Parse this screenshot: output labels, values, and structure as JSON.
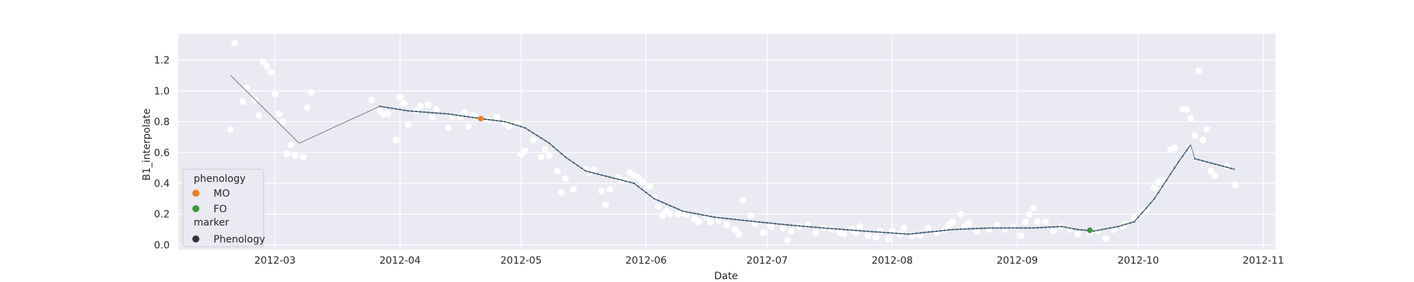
{
  "chart_data": {
    "type": "scatter",
    "xlabel": "Date",
    "ylabel": "B1_interpolate",
    "xlim": [
      "2012-02-06",
      "2012-11-04"
    ],
    "ylim": [
      -0.03,
      1.37
    ],
    "grid": true,
    "background": "#eaeaf2",
    "x_ticks": [
      {
        "date": "2012-03-01",
        "label": "2012-03"
      },
      {
        "date": "2012-04-01",
        "label": "2012-04"
      },
      {
        "date": "2012-05-01",
        "label": "2012-05"
      },
      {
        "date": "2012-06-01",
        "label": "2012-06"
      },
      {
        "date": "2012-07-01",
        "label": "2012-07"
      },
      {
        "date": "2012-08-01",
        "label": "2012-08"
      },
      {
        "date": "2012-09-01",
        "label": "2012-09"
      },
      {
        "date": "2012-10-01",
        "label": "2012-10"
      },
      {
        "date": "2012-11-01",
        "label": "2012-11"
      }
    ],
    "y_ticks": [
      {
        "value": 0.0,
        "label": "0.0"
      },
      {
        "value": 0.2,
        "label": "0.2"
      },
      {
        "value": 0.4,
        "label": "0.4"
      },
      {
        "value": 0.6,
        "label": "0.6"
      },
      {
        "value": 0.8,
        "label": "0.8"
      },
      {
        "value": 1.0,
        "label": "1.0"
      },
      {
        "value": 1.2,
        "label": "1.2"
      }
    ],
    "raw_points": {
      "color": "#ffffff",
      "points": [
        [
          "2012-02-19",
          0.75
        ],
        [
          "2012-02-20",
          1.31
        ],
        [
          "2012-02-22",
          0.93
        ],
        [
          "2012-02-23",
          1.02
        ],
        [
          "2012-02-25",
          0.94
        ],
        [
          "2012-02-26",
          0.84
        ],
        [
          "2012-02-27",
          1.19
        ],
        [
          "2012-02-28",
          1.16
        ],
        [
          "2012-02-29",
          1.12
        ],
        [
          "2012-03-01",
          0.98
        ],
        [
          "2012-03-02",
          0.85
        ],
        [
          "2012-03-03",
          0.8
        ],
        [
          "2012-03-04",
          0.59
        ],
        [
          "2012-03-05",
          0.65
        ],
        [
          "2012-03-06",
          0.58
        ],
        [
          "2012-03-08",
          0.57
        ],
        [
          "2012-03-09",
          0.89
        ],
        [
          "2012-03-10",
          0.99
        ],
        [
          "2012-03-25",
          0.94
        ],
        [
          "2012-03-27",
          0.87
        ],
        [
          "2012-03-28",
          0.85
        ],
        [
          "2012-03-29",
          0.85
        ],
        [
          "2012-03-31",
          0.68
        ],
        [
          "2012-04-01",
          0.96
        ],
        [
          "2012-04-02",
          0.92
        ],
        [
          "2012-04-03",
          0.78
        ],
        [
          "2012-04-05",
          0.87
        ],
        [
          "2012-04-06",
          0.9
        ],
        [
          "2012-04-08",
          0.91
        ],
        [
          "2012-04-09",
          0.83
        ],
        [
          "2012-04-10",
          0.88
        ],
        [
          "2012-04-13",
          0.76
        ],
        [
          "2012-04-14",
          0.83
        ],
        [
          "2012-04-16",
          0.83
        ],
        [
          "2012-04-17",
          0.86
        ],
        [
          "2012-04-18",
          0.77
        ],
        [
          "2012-04-19",
          0.84
        ],
        [
          "2012-04-20",
          0.83
        ],
        [
          "2012-04-23",
          0.81
        ],
        [
          "2012-04-25",
          0.83
        ],
        [
          "2012-04-27",
          0.79
        ],
        [
          "2012-04-28",
          0.77
        ],
        [
          "2012-04-30",
          0.79
        ],
        [
          "2012-05-01",
          0.59
        ],
        [
          "2012-05-02",
          0.61
        ],
        [
          "2012-05-04",
          0.68
        ],
        [
          "2012-05-06",
          0.57
        ],
        [
          "2012-05-07",
          0.62
        ],
        [
          "2012-05-08",
          0.58
        ],
        [
          "2012-05-10",
          0.48
        ],
        [
          "2012-05-11",
          0.34
        ],
        [
          "2012-05-12",
          0.43
        ],
        [
          "2012-05-14",
          0.36
        ],
        [
          "2012-05-17",
          0.49
        ],
        [
          "2012-05-18",
          0.47
        ],
        [
          "2012-05-19",
          0.49
        ],
        [
          "2012-05-21",
          0.35
        ],
        [
          "2012-05-22",
          0.26
        ],
        [
          "2012-05-23",
          0.36
        ],
        [
          "2012-05-25",
          0.44
        ],
        [
          "2012-05-26",
          0.42
        ],
        [
          "2012-05-27",
          0.42
        ],
        [
          "2012-05-28",
          0.47
        ],
        [
          "2012-05-29",
          0.45
        ],
        [
          "2012-05-30",
          0.44
        ],
        [
          "2012-05-31",
          0.41
        ],
        [
          "2012-06-02",
          0.38
        ],
        [
          "2012-06-03",
          0.31
        ],
        [
          "2012-06-04",
          0.25
        ],
        [
          "2012-06-05",
          0.19
        ],
        [
          "2012-06-06",
          0.22
        ],
        [
          "2012-06-07",
          0.2
        ],
        [
          "2012-06-09",
          0.2
        ],
        [
          "2012-06-10",
          0.21
        ],
        [
          "2012-06-11",
          0.2
        ],
        [
          "2012-06-13",
          0.17
        ],
        [
          "2012-06-14",
          0.15
        ],
        [
          "2012-06-16",
          0.18
        ],
        [
          "2012-06-17",
          0.15
        ],
        [
          "2012-06-19",
          0.16
        ],
        [
          "2012-06-21",
          0.13
        ],
        [
          "2012-06-23",
          0.1
        ],
        [
          "2012-06-24",
          0.07
        ],
        [
          "2012-06-25",
          0.29
        ],
        [
          "2012-06-27",
          0.19
        ],
        [
          "2012-06-28",
          0.14
        ],
        [
          "2012-06-30",
          0.08
        ],
        [
          "2012-07-02",
          0.12
        ],
        [
          "2012-07-05",
          0.11
        ],
        [
          "2012-07-06",
          0.03
        ],
        [
          "2012-07-07",
          0.09
        ],
        [
          "2012-07-09",
          0.12
        ],
        [
          "2012-07-11",
          0.13
        ],
        [
          "2012-07-13",
          0.08
        ],
        [
          "2012-07-15",
          0.11
        ],
        [
          "2012-07-17",
          0.1
        ],
        [
          "2012-07-19",
          0.08
        ],
        [
          "2012-07-20",
          0.07
        ],
        [
          "2012-07-22",
          0.1
        ],
        [
          "2012-07-23",
          0.08
        ],
        [
          "2012-07-24",
          0.12
        ],
        [
          "2012-07-26",
          0.06
        ],
        [
          "2012-07-28",
          0.05
        ],
        [
          "2012-07-29",
          0.09
        ],
        [
          "2012-07-31",
          0.04
        ],
        [
          "2012-08-01",
          0.09
        ],
        [
          "2012-08-03",
          0.07
        ],
        [
          "2012-08-04",
          0.11
        ],
        [
          "2012-08-06",
          0.06
        ],
        [
          "2012-08-08",
          0.06
        ],
        [
          "2012-08-10",
          0.11
        ],
        [
          "2012-08-12",
          0.08
        ],
        [
          "2012-08-14",
          0.1
        ],
        [
          "2012-08-15",
          0.13
        ],
        [
          "2012-08-16",
          0.15
        ],
        [
          "2012-08-18",
          0.2
        ],
        [
          "2012-08-19",
          0.12
        ],
        [
          "2012-08-20",
          0.14
        ],
        [
          "2012-08-22",
          0.09
        ],
        [
          "2012-08-25",
          0.1
        ],
        [
          "2012-08-27",
          0.13
        ],
        [
          "2012-08-29",
          0.1
        ],
        [
          "2012-08-31",
          0.12
        ],
        [
          "2012-09-02",
          0.06
        ],
        [
          "2012-09-03",
          0.15
        ],
        [
          "2012-09-04",
          0.2
        ],
        [
          "2012-09-05",
          0.24
        ],
        [
          "2012-09-06",
          0.15
        ],
        [
          "2012-09-08",
          0.15
        ],
        [
          "2012-09-10",
          0.09
        ],
        [
          "2012-09-12",
          0.12
        ],
        [
          "2012-09-14",
          0.1
        ],
        [
          "2012-09-16",
          0.07
        ],
        [
          "2012-09-19",
          0.08
        ],
        [
          "2012-09-21",
          0.09
        ],
        [
          "2012-09-23",
          0.04
        ],
        [
          "2012-09-25",
          0.1
        ],
        [
          "2012-09-27",
          0.12
        ],
        [
          "2012-09-28",
          0.14
        ],
        [
          "2012-09-30",
          0.17
        ],
        [
          "2012-10-01",
          0.19
        ],
        [
          "2012-10-02",
          0.21
        ],
        [
          "2012-10-03",
          0.23
        ],
        [
          "2012-10-05",
          0.37
        ],
        [
          "2012-10-06",
          0.41
        ],
        [
          "2012-10-07",
          0.42
        ],
        [
          "2012-10-09",
          0.62
        ],
        [
          "2012-10-10",
          0.63
        ],
        [
          "2012-10-12",
          0.88
        ],
        [
          "2012-10-13",
          0.88
        ],
        [
          "2012-10-14",
          0.82
        ],
        [
          "2012-10-15",
          0.71
        ],
        [
          "2012-10-16",
          1.13
        ],
        [
          "2012-10-17",
          0.68
        ],
        [
          "2012-10-18",
          0.75
        ],
        [
          "2012-10-19",
          0.48
        ],
        [
          "2012-10-20",
          0.45
        ],
        [
          "2012-10-23",
          0.51
        ],
        [
          "2012-10-25",
          0.39
        ]
      ]
    },
    "interpolated_line": {
      "color": "#4f6d84",
      "marker_color": "#2e4a5f",
      "knots": [
        [
          "2012-02-19",
          1.1
        ],
        [
          "2012-03-07",
          0.66
        ],
        [
          "2012-03-27",
          0.9
        ],
        [
          "2012-04-03",
          0.87
        ],
        [
          "2012-04-13",
          0.85
        ],
        [
          "2012-04-21",
          0.82
        ],
        [
          "2012-04-27",
          0.8
        ],
        [
          "2012-05-02",
          0.76
        ],
        [
          "2012-05-08",
          0.66
        ],
        [
          "2012-05-12",
          0.57
        ],
        [
          "2012-05-17",
          0.48
        ],
        [
          "2012-05-23",
          0.44
        ],
        [
          "2012-05-29",
          0.4
        ],
        [
          "2012-06-03",
          0.3
        ],
        [
          "2012-06-10",
          0.22
        ],
        [
          "2012-06-18",
          0.18
        ],
        [
          "2012-06-25",
          0.16
        ],
        [
          "2012-07-06",
          0.13
        ],
        [
          "2012-07-15",
          0.11
        ],
        [
          "2012-07-25",
          0.09
        ],
        [
          "2012-08-05",
          0.07
        ],
        [
          "2012-08-16",
          0.1
        ],
        [
          "2012-08-25",
          0.11
        ],
        [
          "2012-09-05",
          0.11
        ],
        [
          "2012-09-12",
          0.12
        ],
        [
          "2012-09-16",
          0.1
        ],
        [
          "2012-09-20",
          0.09
        ],
        [
          "2012-09-26",
          0.12
        ],
        [
          "2012-09-30",
          0.15
        ],
        [
          "2012-10-05",
          0.3
        ],
        [
          "2012-10-11",
          0.54
        ],
        [
          "2012-10-14",
          0.65
        ],
        [
          "2012-10-15",
          0.56
        ],
        [
          "2012-10-25",
          0.49
        ]
      ],
      "gaps": [
        [
          "2012-02-19",
          "2012-03-07"
        ],
        [
          "2012-03-07",
          "2012-03-27"
        ],
        [
          "2012-10-14",
          "2012-10-15"
        ]
      ]
    },
    "phenology_points": [
      {
        "name": "MO",
        "date": "2012-04-21",
        "value": 0.82,
        "color": "#f07c24"
      },
      {
        "name": "FO",
        "date": "2012-09-19",
        "value": 0.095,
        "color": "#3a9a3a"
      }
    ],
    "legend": {
      "location": "lower-left",
      "title_phenology": "phenology",
      "item_mo": "MO",
      "item_fo": "FO",
      "title_marker": "marker",
      "item_marker": "Phenology",
      "color_mo": "#f07c24",
      "color_fo": "#3a9a3a",
      "color_marker": "#333333"
    }
  }
}
